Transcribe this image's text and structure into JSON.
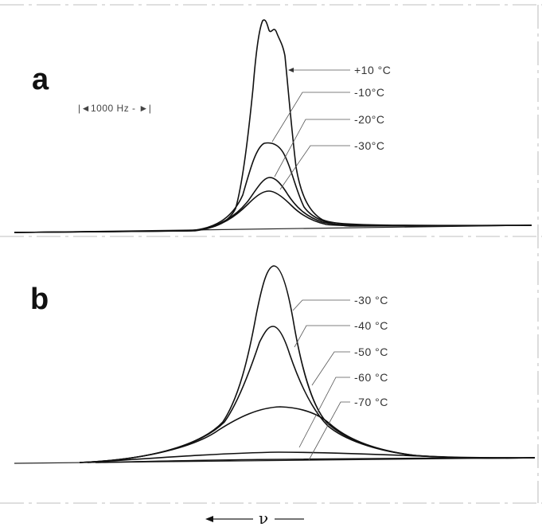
{
  "panels": {
    "a": {
      "label": "a",
      "scale_bar": "|◄1000 Hz - ►|",
      "temperatures": [
        "+10 °C",
        "-10°C",
        "-20°C",
        "-30°C"
      ]
    },
    "b": {
      "label": "b",
      "temperatures": [
        "-30 °C",
        "-40 °C",
        "-50 °C",
        "-60 °C",
        "-70 °C"
      ]
    }
  },
  "x_axis_label": "ν"
}
